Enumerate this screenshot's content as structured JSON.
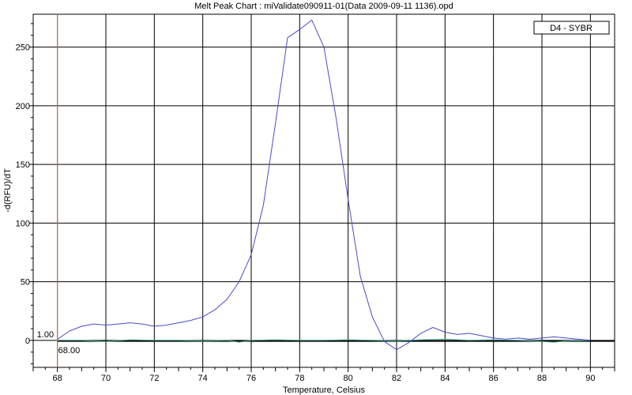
{
  "chart_data": {
    "type": "line",
    "title": "Melt Peak Chart : miValidate090911-01(Data 2009-09-11 1136).opd",
    "xlabel": "Temperature, Celsius",
    "ylabel": "-d(RFU)/dT",
    "xlim": [
      67,
      91
    ],
    "ylim": [
      -23,
      278
    ],
    "xticks": [
      68,
      70,
      72,
      74,
      76,
      78,
      80,
      82,
      84,
      86,
      88,
      90
    ],
    "xtick_labels": [
      "68",
      "70",
      "72",
      "74",
      "76",
      "78",
      "80",
      "82",
      "84",
      "86",
      "88",
      "90"
    ],
    "yticks": [
      0,
      50,
      100,
      150,
      200,
      250
    ],
    "ytick_labels": [
      "0",
      "50",
      "100",
      "150",
      "200",
      "250"
    ],
    "grid": true,
    "legend_position": "top-right",
    "legend": [
      "D4 - SYBR"
    ],
    "cursor": {
      "x": 68.0,
      "x_label": "68.00",
      "y_label": "1.00",
      "color": "#d08050"
    },
    "series": [
      {
        "name": "D4 - SYBR",
        "color": "#4b4bc8",
        "x": [
          68,
          68.5,
          69,
          69.5,
          70,
          70.5,
          71,
          71.5,
          72,
          72.5,
          73,
          73.5,
          74,
          74.5,
          75,
          75.5,
          76,
          76.5,
          77,
          77.5,
          78,
          78.5,
          79,
          79.5,
          80,
          80.5,
          81,
          81.5,
          82,
          82.5,
          83,
          83.5,
          84,
          84.5,
          85,
          85.5,
          86,
          86.5,
          87,
          87.5,
          88,
          88.5,
          89,
          89.5,
          90
        ],
        "y": [
          1,
          8,
          12,
          14,
          13,
          14,
          15,
          14,
          12,
          13,
          15,
          17,
          20,
          26,
          35,
          50,
          73,
          115,
          185,
          258,
          265,
          273,
          250,
          190,
          120,
          55,
          20,
          -1,
          -8,
          -2,
          6,
          11,
          7,
          5,
          6,
          4,
          2,
          1,
          2,
          1,
          2,
          3,
          2,
          1,
          0
        ]
      },
      {
        "color": "#40a890",
        "x": [
          68,
          69,
          70,
          71,
          72,
          73,
          74,
          75,
          75.5,
          76,
          77,
          78,
          79,
          80,
          81,
          82,
          83,
          84,
          85,
          86,
          87,
          88,
          88.5,
          89,
          90
        ],
        "y": [
          0,
          0,
          -1,
          0.5,
          0,
          0,
          -0.5,
          0,
          -1.5,
          0,
          0.5,
          0,
          0,
          0.5,
          0,
          -0.5,
          0.5,
          1,
          0,
          0.5,
          0,
          -1,
          -1.5,
          -0.5,
          0
        ]
      },
      {
        "color": "#000000",
        "x": [
          68,
          70,
          72,
          74,
          76,
          78,
          80,
          82,
          84,
          86,
          88,
          90,
          91
        ],
        "y": [
          -0.5,
          -0.5,
          -0.5,
          -0.5,
          -0.5,
          -0.5,
          -0.5,
          -0.5,
          -0.5,
          -0.5,
          -0.5,
          -0.5,
          -0.5
        ]
      }
    ]
  }
}
